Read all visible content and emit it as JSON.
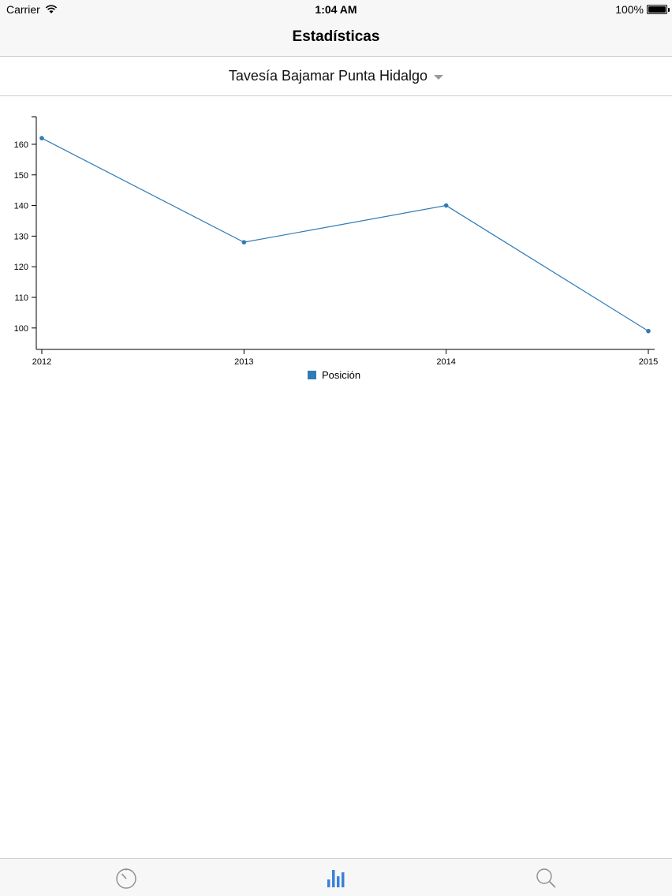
{
  "status_bar": {
    "carrier": "Carrier",
    "time": "1:04 AM",
    "battery": "100%",
    "battery_level": 1.0,
    "icons": [
      "wifi-icon",
      "battery-icon"
    ]
  },
  "nav": {
    "title": "Estadísticas"
  },
  "selector": {
    "label": "Tavesía Bajamar Punta Hidalgo",
    "icon": "caret-down-icon"
  },
  "chart_data": {
    "type": "line",
    "x": [
      "2012",
      "2013",
      "2014",
      "2015"
    ],
    "series": [
      {
        "name": "Posición",
        "values": [
          162,
          128,
          140,
          99
        ],
        "color": "#2f7bb6"
      }
    ],
    "yticks": [
      100,
      110,
      120,
      130,
      140,
      150,
      160
    ],
    "ylim": [
      93,
      169
    ],
    "grid": false,
    "legend": "bottom-center"
  },
  "tab_bar": {
    "accent": "#3b82d6",
    "inactive": "#8e8e8e",
    "tabs": [
      {
        "icon": "stopwatch-icon",
        "active": false
      },
      {
        "icon": "bar-chart-icon",
        "active": true
      },
      {
        "icon": "search-icon",
        "active": false
      }
    ]
  }
}
